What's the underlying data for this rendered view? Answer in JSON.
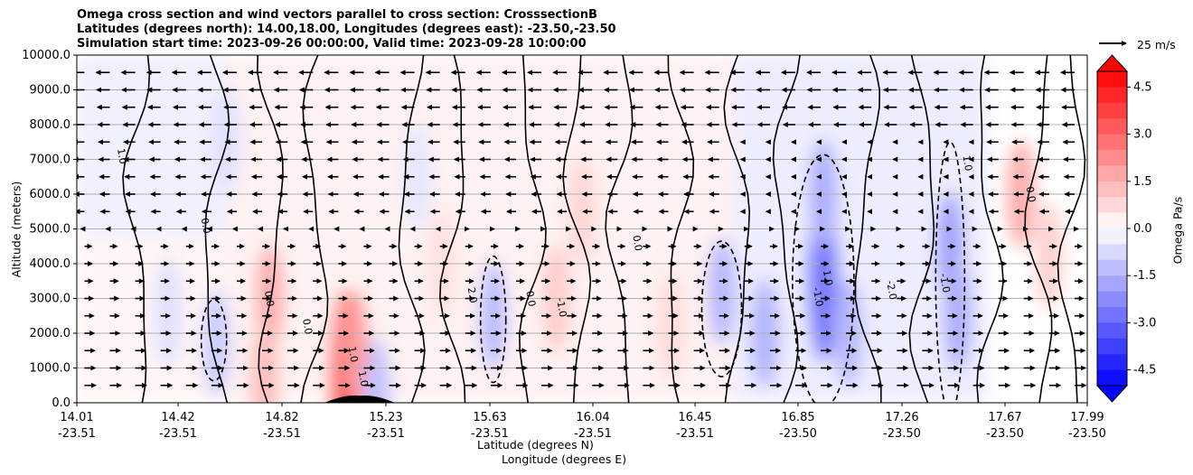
{
  "title_lines": [
    "Omega cross section and wind vectors parallel to cross section: CrosssectionB",
    "Latitudes (degrees north): 14.00,18.00, Longitudes (degrees east): -23.50,-23.50",
    "Simulation start time: 2023-09-26 00:00:00, Valid time: 2023-09-28 10:00:00"
  ],
  "xlabel_lat": "Latitude (degrees N)",
  "xlabel_lon": "Longitude (degrees E)",
  "ylabel": "Altitude (meters)",
  "colorbar_label": "Omega Pa/s",
  "quiver_key_label": "25 m/s",
  "colors": {
    "negative_max": "#0000ff",
    "positive_max": "#ff0000",
    "neutral": "#ffffff",
    "contour": "#000000",
    "grid": "#b0b0b0"
  },
  "chart_data": {
    "type": "heatmap",
    "subtype": "vertical cross section: filled omega contours, omega contour lines, wind vectors",
    "x_ticks": [
      {
        "lat": "14.01",
        "lon": "-23.51"
      },
      {
        "lat": "14.42",
        "lon": "-23.51"
      },
      {
        "lat": "14.82",
        "lon": "-23.51"
      },
      {
        "lat": "15.23",
        "lon": "-23.51"
      },
      {
        "lat": "15.63",
        "lon": "-23.51"
      },
      {
        "lat": "16.04",
        "lon": "-23.51"
      },
      {
        "lat": "16.45",
        "lon": "-23.51"
      },
      {
        "lat": "16.85",
        "lon": "-23.50"
      },
      {
        "lat": "17.26",
        "lon": "-23.50"
      },
      {
        "lat": "17.67",
        "lon": "-23.50"
      },
      {
        "lat": "17.99",
        "lon": "-23.50"
      }
    ],
    "xlim": [
      14.01,
      17.99
    ],
    "y_ticks": [
      "0.0",
      "1000.0",
      "2000.0",
      "3000.0",
      "4000.0",
      "5000.0",
      "6000.0",
      "7000.0",
      "8000.0",
      "9000.0",
      "10000.0"
    ],
    "ylim": [
      0,
      10000
    ],
    "grid": "horizontal",
    "colorbar": {
      "ticks": [
        "4.5",
        "3.0",
        "1.5",
        "0.0",
        "-1.5",
        "-3.0",
        "-4.5"
      ],
      "range": [
        -5.0,
        5.0
      ],
      "levels": 20,
      "extend": "both"
    },
    "contour_levels": [
      -1.0,
      0.0,
      1.0,
      2.0
    ],
    "contour_label_samples": [
      "1.0",
      "0.0",
      "0.0",
      "0.0",
      "1.0",
      "1.0",
      "2.0",
      "0.0",
      "-1.0",
      "1.0",
      "-1.0",
      "-2.0",
      "-1.0",
      "0.0",
      "1.0",
      "0.0"
    ],
    "omega_field": [
      {
        "lat": 16.95,
        "alt": 3500,
        "value": -2.6
      },
      {
        "lat": 16.95,
        "alt": 6000,
        "value": -1.6
      },
      {
        "lat": 17.05,
        "alt": 2000,
        "value": -1.4
      },
      {
        "lat": 17.45,
        "alt": 4500,
        "value": -1.8
      },
      {
        "lat": 17.48,
        "alt": 2500,
        "value": -1.6
      },
      {
        "lat": 16.55,
        "alt": 3200,
        "value": -1.4
      },
      {
        "lat": 16.72,
        "alt": 2000,
        "value": -1.5
      },
      {
        "lat": 15.65,
        "alt": 2500,
        "value": -1.3
      },
      {
        "lat": 15.19,
        "alt": 300,
        "value": -1.2
      },
      {
        "lat": 15.35,
        "alt": 6500,
        "value": -0.5
      },
      {
        "lat": 14.56,
        "alt": 1700,
        "value": -1.0
      },
      {
        "lat": 14.37,
        "alt": 2600,
        "value": -0.6
      },
      {
        "lat": 14.6,
        "alt": 7500,
        "value": -0.6
      },
      {
        "lat": 15.07,
        "alt": 900,
        "value": 3.4
      },
      {
        "lat": 15.1,
        "alt": 1700,
        "value": 2.0
      },
      {
        "lat": 14.77,
        "alt": 3000,
        "value": 1.6
      },
      {
        "lat": 14.75,
        "alt": 700,
        "value": 1.3
      },
      {
        "lat": 15.9,
        "alt": 3000,
        "value": 1.0
      },
      {
        "lat": 16.0,
        "alt": 5500,
        "value": 0.8
      },
      {
        "lat": 17.73,
        "alt": 6000,
        "value": 1.6
      },
      {
        "lat": 17.84,
        "alt": 4200,
        "value": 0.9
      },
      {
        "lat": 15.45,
        "alt": 4000,
        "value": 0.6
      },
      {
        "lat": 16.35,
        "alt": 2200,
        "value": 0.7
      }
    ],
    "terrain": {
      "peak_lat": 15.12,
      "peak_alt": 200
    },
    "quiver_key_speed": 25,
    "vectors_direction": "mostly westward aloft (5000-10000 m), eastward in the lower troposphere (0-4500 m)"
  }
}
